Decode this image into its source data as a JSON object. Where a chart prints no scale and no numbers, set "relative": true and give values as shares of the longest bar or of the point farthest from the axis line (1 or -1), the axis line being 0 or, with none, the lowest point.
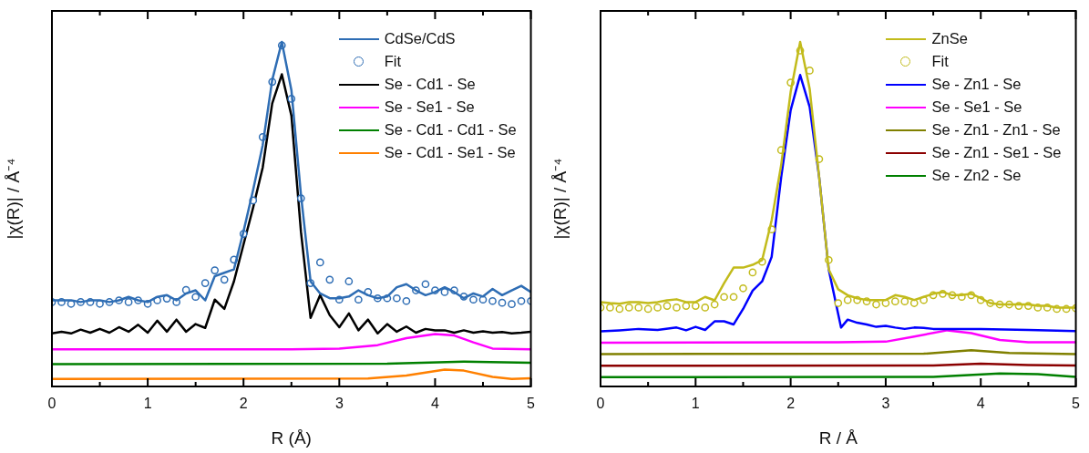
{
  "chart_data": [
    {
      "type": "line",
      "xlabel": "R (Å)",
      "ylabel": "|χ(R)| / Å⁻⁴",
      "relative": true,
      "legend": "top right",
      "xlim": [
        0,
        5
      ],
      "xticks": [
        0,
        {
          "value": 0.5,
          "label": null
        },
        1,
        {
          "value": 1.5,
          "label": null
        },
        2,
        {
          "value": 2.5,
          "label": null
        },
        3,
        {
          "value": 3.5,
          "label": null
        },
        4,
        {
          "value": 4.5,
          "label": null
        },
        5
      ],
      "series": [
        {
          "name": "CdSe/CdS",
          "type": "line",
          "color": "#2e6db4",
          "x": [
            0,
            0.1,
            0.2,
            0.3,
            0.4,
            0.5,
            0.6,
            0.7,
            0.8,
            0.9,
            1.0,
            1.1,
            1.2,
            1.3,
            1.4,
            1.5,
            1.6,
            1.7,
            1.8,
            1.9,
            2.0,
            2.1,
            2.2,
            2.3,
            2.4,
            2.5,
            2.6,
            2.7,
            2.8,
            2.9,
            3.0,
            3.1,
            3.2,
            3.3,
            3.4,
            3.5,
            3.6,
            3.7,
            3.8,
            3.9,
            4.0,
            4.1,
            4.2,
            4.3,
            4.4,
            4.5,
            4.6,
            4.7,
            4.8,
            4.9,
            5.0
          ],
          "values": [
            0.25,
            0.25,
            0.25,
            0.245,
            0.25,
            0.25,
            0.245,
            0.25,
            0.26,
            0.25,
            0.245,
            0.26,
            0.265,
            0.25,
            0.27,
            0.279,
            0.25,
            0.32,
            0.33,
            0.34,
            0.45,
            0.57,
            0.7,
            0.89,
            1.0,
            0.86,
            0.555,
            0.305,
            0.27,
            0.256,
            0.256,
            0.261,
            0.279,
            0.265,
            0.256,
            0.261,
            0.288,
            0.297,
            0.279,
            0.265,
            0.274,
            0.288,
            0.274,
            0.256,
            0.27,
            0.261,
            0.283,
            0.265,
            0.279,
            0.292,
            0.274
          ]
        },
        {
          "name": "Fit",
          "type": "scatter",
          "marker": "circle",
          "color": "#2e6db4",
          "x": [
            0,
            0.1,
            0.2,
            0.3,
            0.4,
            0.5,
            0.6,
            0.7,
            0.8,
            0.9,
            1.0,
            1.1,
            1.2,
            1.3,
            1.4,
            1.5,
            1.6,
            1.7,
            1.8,
            1.9,
            2.0,
            2.1,
            2.2,
            2.3,
            2.4,
            2.5,
            2.6,
            2.7,
            2.8,
            2.9,
            3.0,
            3.1,
            3.2,
            3.3,
            3.4,
            3.5,
            3.6,
            3.7,
            3.8,
            3.9,
            4.0,
            4.1,
            4.2,
            4.3,
            4.4,
            4.5,
            4.6,
            4.7,
            4.8,
            4.9,
            5.0
          ],
          "values": [
            0.245,
            0.245,
            0.24,
            0.245,
            0.245,
            0.24,
            0.245,
            0.25,
            0.245,
            0.25,
            0.24,
            0.25,
            0.255,
            0.245,
            0.28,
            0.26,
            0.3,
            0.337,
            0.31,
            0.368,
            0.443,
            0.54,
            0.724,
            0.884,
            0.99,
            0.835,
            0.546,
            0.3,
            0.36,
            0.31,
            0.252,
            0.305,
            0.252,
            0.274,
            0.256,
            0.256,
            0.256,
            0.248,
            0.279,
            0.297,
            0.279,
            0.274,
            0.279,
            0.261,
            0.252,
            0.252,
            0.248,
            0.243,
            0.239,
            0.248,
            0.248
          ]
        },
        {
          "name": "Se - Cd1 - Se",
          "type": "line",
          "color": "#000000",
          "x": [
            0,
            0.1,
            0.2,
            0.3,
            0.4,
            0.5,
            0.6,
            0.7,
            0.8,
            0.9,
            1.0,
            1.1,
            1.2,
            1.3,
            1.4,
            1.5,
            1.6,
            1.7,
            1.8,
            1.9,
            2.0,
            2.1,
            2.2,
            2.3,
            2.4,
            2.5,
            2.6,
            2.7,
            2.8,
            2.9,
            3.0,
            3.1,
            3.2,
            3.3,
            3.4,
            3.5,
            3.6,
            3.7,
            3.8,
            3.9,
            4.0,
            4.1,
            4.2,
            4.3,
            4.4,
            4.5,
            4.6,
            4.7,
            4.8,
            4.9,
            5.0
          ],
          "values": [
            0.154,
            0.159,
            0.154,
            0.165,
            0.156,
            0.167,
            0.156,
            0.172,
            0.159,
            0.179,
            0.156,
            0.191,
            0.159,
            0.194,
            0.159,
            0.181,
            0.17,
            0.252,
            0.225,
            0.305,
            0.412,
            0.519,
            0.635,
            0.822,
            0.906,
            0.786,
            0.448,
            0.199,
            0.265,
            0.207,
            0.172,
            0.212,
            0.163,
            0.194,
            0.154,
            0.181,
            0.159,
            0.174,
            0.156,
            0.167,
            0.163,
            0.163,
            0.156,
            0.163,
            0.156,
            0.16,
            0.156,
            0.158,
            0.154,
            0.156,
            0.159
          ]
        },
        {
          "name": "Se - Se1 - Se",
          "type": "line",
          "color": "#ff00ff",
          "x": [
            0,
            2.5,
            3.0,
            3.4,
            3.7,
            4.0,
            4.2,
            4.4,
            4.6,
            5.0
          ],
          "values": [
            0.108,
            0.108,
            0.11,
            0.12,
            0.14,
            0.152,
            0.148,
            0.128,
            0.11,
            0.108
          ]
        },
        {
          "name": "Se - Cd1 - Cd1 - Se",
          "type": "line",
          "color": "#008000",
          "x": [
            0,
            3.5,
            4.3,
            5.0
          ],
          "values": [
            0.065,
            0.066,
            0.072,
            0.069
          ]
        },
        {
          "name": "Se - Cd1 - Se1 - Se",
          "type": "line",
          "color": "#ff8000",
          "x": [
            0,
            3.3,
            3.7,
            4.1,
            4.3,
            4.6,
            4.8,
            5.0
          ],
          "values": [
            0.022,
            0.023,
            0.032,
            0.049,
            0.046,
            0.028,
            0.022,
            0.024
          ]
        }
      ]
    },
    {
      "type": "line",
      "xlabel": "R / Å",
      "ylabel": "|χ(R)| / Å⁻⁴",
      "relative": true,
      "legend": "top right",
      "xlim": [
        0,
        5
      ],
      "xticks": [
        0,
        {
          "value": 0.5,
          "label": null
        },
        1,
        {
          "value": 1.5,
          "label": null
        },
        2,
        {
          "value": 2.5,
          "label": null
        },
        3,
        {
          "value": 3.5,
          "label": null
        },
        4,
        {
          "value": 4.5,
          "label": null
        },
        5
      ],
      "series": [
        {
          "name": "ZnSe",
          "type": "line",
          "color": "#c2bb1b",
          "x": [
            0,
            0.1,
            0.2,
            0.3,
            0.4,
            0.5,
            0.6,
            0.7,
            0.8,
            0.9,
            1.0,
            1.1,
            1.2,
            1.3,
            1.4,
            1.5,
            1.6,
            1.7,
            1.8,
            1.9,
            2.0,
            2.1,
            2.2,
            2.3,
            2.4,
            2.5,
            2.6,
            2.7,
            2.8,
            2.9,
            3.0,
            3.1,
            3.2,
            3.3,
            3.4,
            3.5,
            3.6,
            3.7,
            3.8,
            3.9,
            4.0,
            4.1,
            4.2,
            4.3,
            4.4,
            4.5,
            4.6,
            4.7,
            4.8,
            4.9,
            5.0
          ],
          "values": [
            0.245,
            0.242,
            0.24,
            0.245,
            0.245,
            0.242,
            0.245,
            0.25,
            0.253,
            0.245,
            0.245,
            0.26,
            0.25,
            0.3,
            0.345,
            0.345,
            0.353,
            0.367,
            0.482,
            0.642,
            0.855,
            1.0,
            0.864,
            0.607,
            0.34,
            0.282,
            0.265,
            0.256,
            0.251,
            0.251,
            0.251,
            0.265,
            0.26,
            0.251,
            0.26,
            0.269,
            0.274,
            0.265,
            0.265,
            0.269,
            0.256,
            0.242,
            0.238,
            0.238,
            0.238,
            0.238,
            0.234,
            0.234,
            0.229,
            0.229,
            0.229
          ]
        },
        {
          "name": "Fit",
          "type": "scatter",
          "marker": "circle",
          "color": "#c2bb1b",
          "x": [
            0,
            0.1,
            0.2,
            0.3,
            0.4,
            0.5,
            0.6,
            0.7,
            0.8,
            0.9,
            1.0,
            1.1,
            1.2,
            1.3,
            1.4,
            1.5,
            1.6,
            1.7,
            1.8,
            1.9,
            2.0,
            2.1,
            2.2,
            2.3,
            2.4,
            2.5,
            2.6,
            2.7,
            2.8,
            2.9,
            3.0,
            3.1,
            3.2,
            3.3,
            3.4,
            3.5,
            3.6,
            3.7,
            3.8,
            3.9,
            4.0,
            4.1,
            4.2,
            4.3,
            4.4,
            4.5,
            4.6,
            4.7,
            4.8,
            4.9,
            5.0
          ],
          "values": [
            0.229,
            0.229,
            0.225,
            0.229,
            0.229,
            0.225,
            0.229,
            0.234,
            0.229,
            0.234,
            0.234,
            0.229,
            0.238,
            0.26,
            0.26,
            0.285,
            0.331,
            0.362,
            0.456,
            0.686,
            0.882,
            0.975,
            0.917,
            0.66,
            0.367,
            0.242,
            0.251,
            0.251,
            0.247,
            0.238,
            0.242,
            0.247,
            0.247,
            0.242,
            0.251,
            0.265,
            0.269,
            0.265,
            0.26,
            0.265,
            0.251,
            0.242,
            0.238,
            0.238,
            0.234,
            0.234,
            0.229,
            0.229,
            0.225,
            0.225,
            0.227
          ]
        },
        {
          "name": "Se - Zn1 - Se",
          "type": "line",
          "color": "#0000ff",
          "x": [
            0,
            0.2,
            0.4,
            0.6,
            0.8,
            0.9,
            1.0,
            1.1,
            1.2,
            1.3,
            1.4,
            1.5,
            1.6,
            1.7,
            1.8,
            1.9,
            2.0,
            2.1,
            2.2,
            2.3,
            2.4,
            2.53,
            2.6,
            2.7,
            2.8,
            2.9,
            3.0,
            3.1,
            3.2,
            3.3,
            3.4,
            3.5,
            4.0,
            4.5,
            5.0
          ],
          "values": [
            0.16,
            0.163,
            0.167,
            0.164,
            0.171,
            0.163,
            0.173,
            0.164,
            0.189,
            0.189,
            0.18,
            0.225,
            0.278,
            0.305,
            0.376,
            0.607,
            0.802,
            0.904,
            0.811,
            0.607,
            0.34,
            0.171,
            0.194,
            0.185,
            0.18,
            0.173,
            0.176,
            0.171,
            0.167,
            0.171,
            0.17,
            0.167,
            0.167,
            0.164,
            0.161
          ]
        },
        {
          "name": "Se - Se1 - Se",
          "type": "line",
          "color": "#ff00ff",
          "x": [
            0,
            2.5,
            3.0,
            3.3,
            3.65,
            3.9,
            4.2,
            4.5,
            5.0
          ],
          "values": [
            0.127,
            0.128,
            0.13,
            0.145,
            0.163,
            0.155,
            0.135,
            0.128,
            0.128
          ]
        },
        {
          "name": "Se - Zn1 - Zn1 - Se",
          "type": "line",
          "color": "#808000",
          "x": [
            0,
            3.4,
            3.9,
            4.3,
            5.0
          ],
          "values": [
            0.094,
            0.095,
            0.105,
            0.097,
            0.094
          ]
        },
        {
          "name": "Se - Zn1 - Se1 - Se",
          "type": "line",
          "color": "#8b0000",
          "x": [
            0,
            3.5,
            4.0,
            4.5,
            5.0
          ],
          "values": [
            0.06,
            0.061,
            0.066,
            0.062,
            0.061
          ]
        },
        {
          "name": "Se - Zn2 - Se",
          "type": "line",
          "color": "#008000",
          "x": [
            0,
            3.5,
            4.2,
            4.6,
            5.0
          ],
          "values": [
            0.027,
            0.028,
            0.038,
            0.036,
            0.028
          ]
        }
      ]
    }
  ]
}
